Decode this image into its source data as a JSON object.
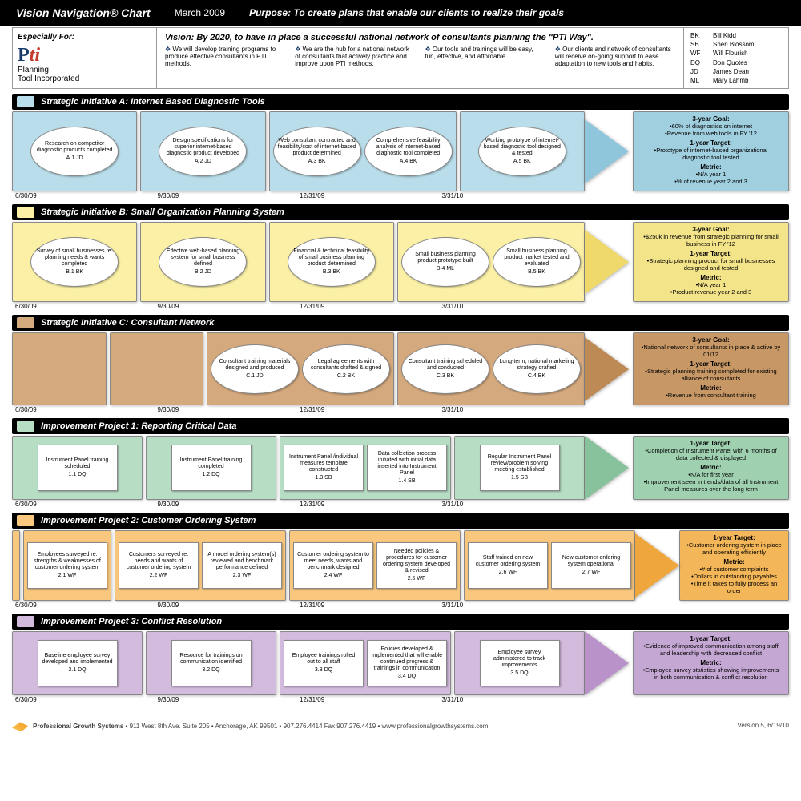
{
  "header": {
    "title": "Vision Navigation® Chart",
    "date": "March 2009",
    "purpose": "Purpose: To create plans that enable our clients to realize their goals"
  },
  "especially_for": "Especially For:",
  "logo": {
    "line1": "Planning",
    "line2": "Tool Incorporated"
  },
  "vision": {
    "title": "Vision: By 2020, to have in place a successful national network of consultants planning the \"PTI Way\".",
    "points": [
      "We will develop training programs to produce effective consultants in PTI methods.",
      "We are the hub for a national network of consultants that actively practice and improve upon PTI methods.",
      "Our tools and trainings will be easy, fun, effective, and affordable.",
      "Our clients and network of consultants will receive on-going support to ease adaptation to new tools and habits."
    ]
  },
  "legend": [
    {
      "code": "BK",
      "name": "Bill Kidd"
    },
    {
      "code": "SB",
      "name": "Sheri Blossom"
    },
    {
      "code": "WF",
      "name": "Will Flourish"
    },
    {
      "code": "DQ",
      "name": "Don Quotes"
    },
    {
      "code": "JD",
      "name": "James Dean"
    },
    {
      "code": "ML",
      "name": "Mary Lahmb"
    }
  ],
  "dates": [
    "6/30/09",
    "9/30/09",
    "12/31/09",
    "3/31/10"
  ],
  "lanes": {
    "A": {
      "title": "Strategic Initiative A: Internet Based Diagnostic Tools",
      "color": "#b9ddea",
      "color_dark": "#a0cfdf",
      "arrow": "#8fc6db",
      "shape": "oval",
      "periods": [
        [
          {
            "t": "Research on competitor diagnostic products completed",
            "id": "A.1   JD"
          }
        ],
        [
          {
            "t": "Design specifications for superior internet-based diagnostic product developed",
            "id": "A.2   JD"
          }
        ],
        [
          {
            "t": "Web consultant contracted and feasibility/cost of internet-based product determined",
            "id": "A.3   BK"
          },
          {
            "t": "Comprehensive feasibility analysis of internet-based diagnostic tool completed",
            "id": "A.4   BK"
          }
        ],
        [
          {
            "t": "Working prototype of internet-based diagnostic tool designed & tested",
            "id": "A.5   BK"
          }
        ]
      ],
      "goals": {
        "g3_label": "3-year Goal:",
        "g3": [
          "60% of diagnostics on internet",
          "Revenue from web tools in FY '12"
        ],
        "g1_label": "1-year Target:",
        "g1": [
          "Prototype of internet-based organizational diagnostic tool tested"
        ],
        "m_label": "Metric:",
        "m": [
          "N/A year 1",
          "% of revenue year 2 and 3"
        ]
      }
    },
    "B": {
      "title": "Strategic Initiative B: Small Organization Planning System",
      "color": "#fbf0a6",
      "color_dark": "#f3e48a",
      "arrow": "#eed96a",
      "shape": "oval",
      "periods": [
        [
          {
            "t": "Survey of small businesses re. planning needs & wants completed",
            "id": "B.1   BK"
          }
        ],
        [
          {
            "t": "Effective web-based planning system for small business defined",
            "id": "B.2   JD"
          }
        ],
        [
          {
            "t": "Financial & technical feasibility of small business planning product determined",
            "id": "B.3   BK"
          }
        ],
        [
          {
            "t": "Small business planning product prototype built",
            "id": "B.4   ML"
          },
          {
            "t": "Small business planning product market tested and evaluated",
            "id": "B.5   BK"
          }
        ]
      ],
      "goals": {
        "g3_label": "3-year Goal:",
        "g3": [
          "$250k in revenue from strategic planning for small business in FY '12"
        ],
        "g1_label": "1-year Target:",
        "g1": [
          "Strategic planning product for small businesses designed and tested"
        ],
        "m_label": "Metric:",
        "m": [
          "N/A year 1",
          "Product revenue year 2 and 3"
        ]
      }
    },
    "C": {
      "title": "Strategic Initiative C: Consultant Network",
      "color": "#d5a97e",
      "color_dark": "#c79866",
      "arrow": "#bd8a55",
      "shape": "oval",
      "periods": [
        [],
        [],
        [
          {
            "t": "Consultant training materials designed and produced",
            "id": "C.1   JD"
          },
          {
            "t": "Legal agreements with consultants drafted & signed",
            "id": "C.2   BK"
          }
        ],
        [
          {
            "t": "Consultant training scheduled and conducted",
            "id": "C.3   BK"
          },
          {
            "t": "Long-term, national marketing strategy drafted",
            "id": "C.4   BK"
          }
        ]
      ],
      "goals": {
        "g3_label": "3-year Goal:",
        "g3": [
          "National network of consultants in place & active by 01/12"
        ],
        "g1_label": "1-year Target:",
        "g1": [
          "Strategic planning training completed for existing alliance of consultants"
        ],
        "m_label": "Metric:",
        "m": [
          "Revenue from consultant training"
        ]
      }
    },
    "P1": {
      "title": "Improvement Project 1: Reporting Critical Data",
      "color": "#b7dec5",
      "color_dark": "#9fd0b0",
      "arrow": "#87c29c",
      "shape": "rect",
      "periods": [
        [
          {
            "t": "Instrument Panel training scheduled",
            "id": "1.1   DQ"
          }
        ],
        [
          {
            "t": "Instrument Panel training completed",
            "id": "1.2   DQ"
          }
        ],
        [
          {
            "t": "Instrument Panel /individual measures template constructed",
            "id": "1.3   SB"
          },
          {
            "t": "Data collection process initiated with initial data inserted into Instrument Panel",
            "id": "1.4   SB"
          }
        ],
        [
          {
            "t": "Regular Instrument Panel review/problem solving meeting established",
            "id": "1.5   SB"
          }
        ]
      ],
      "goals": {
        "g1_label": "1-year Target:",
        "g1": [
          "Completion of Instrument Panel with 6 months of data collected & displayed"
        ],
        "m_label": "Metric:",
        "m": [
          "N/A for first year",
          "Improvement seen in trends/data of all Instrument Panel measures over the long term"
        ]
      }
    },
    "P2": {
      "title": "Improvement Project 2: Customer Ordering System",
      "color": "#f9c77e",
      "color_dark": "#f3b659",
      "arrow": "#eea63d",
      "shape": "rect",
      "leader": true,
      "periods": [
        [
          {
            "t": "Employees surveyed re. strengths & weaknesses of customer ordering system",
            "id": "2.1   WF"
          }
        ],
        [
          {
            "t": "Customers surveyed re. needs and wants of customer ordering system",
            "id": "2.2   WF"
          },
          {
            "t": "A model ordering system(s) reviewed and benchmark performance defined",
            "id": "2.3   WF"
          }
        ],
        [
          {
            "t": "Customer ordering system to meet needs, wants and benchmark designed",
            "id": "2.4   WF"
          },
          {
            "t": "Needed policies & procedures for customer ordering system developed & revised",
            "id": "2.5   WF"
          }
        ],
        [
          {
            "t": "Staff trained on new customer ordering system",
            "id": "2.6   WF"
          },
          {
            "t": "New customer ordering system operational",
            "id": "2.7   WF"
          }
        ]
      ],
      "goals": {
        "g1_label": "1-year Target:",
        "g1": [
          "Customer ordering system in place and operating efficiently"
        ],
        "m_label": "Metric:",
        "m": [
          "# of customer complaints",
          "Dollars in outstanding payables",
          "Time it takes to fully process an order"
        ]
      }
    },
    "P3": {
      "title": "Improvement Project 3: Conflict Resolution",
      "color": "#d3bbdd",
      "color_dark": "#c5a7d3",
      "arrow": "#b892c8",
      "shape": "rect",
      "periods": [
        [
          {
            "t": "Baseline employee survey developed and implemented",
            "id": "3.1   DQ"
          }
        ],
        [
          {
            "t": "Resource for trainings on communication identified",
            "id": "3.2   DQ"
          }
        ],
        [
          {
            "t": "Employee trainings rolled out to all staff",
            "id": "3.3   DQ"
          },
          {
            "t": "Policies developed & implemented that will enable continued progress & trainings in communication",
            "id": "3.4   DQ"
          }
        ],
        [
          {
            "t": "Employee survey administered to track improvements",
            "id": "3.5   DQ"
          }
        ]
      ],
      "goals": {
        "g1_label": "1-year Target:",
        "g1": [
          "Evidence of improved communication among staff and leadership with decreased conflict"
        ],
        "m_label": "Metric:",
        "m": [
          "Employee survey statistics showing improvements in both communication & conflict resolution"
        ]
      }
    }
  },
  "footer": {
    "company": "Professional Growth Systems",
    "addr": " • 911 West 8th Ave. Suite 205 • Anchorage, AK 99501 • 907.276.4414 Fax 907.276.4419 • www.professionalgrowthsystems.com",
    "version": "Version 5, 6/19/10"
  }
}
